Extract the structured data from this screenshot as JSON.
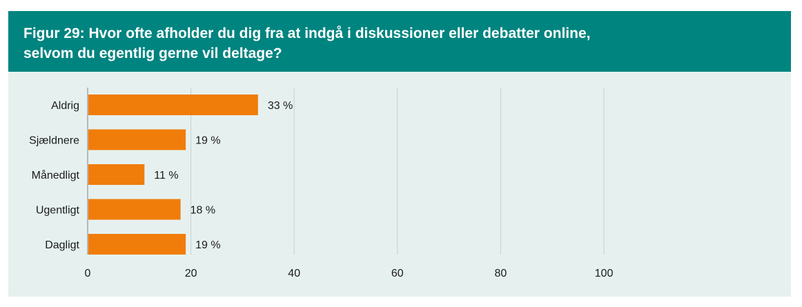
{
  "header": {
    "title_line1": "Figur 29: Hvor ofte afholder du dig fra at indgå i diskussioner eller debatter online,",
    "title_line2": "selvom du egentlig gerne vil deltage?"
  },
  "colors": {
    "header_bg": "#00847f",
    "panel_bg": "#e6f1ef",
    "bar": "#f07d0a",
    "grid": "#c8cfce"
  },
  "chart_data": {
    "type": "bar",
    "orientation": "horizontal",
    "categories": [
      "Aldrig",
      "Sjældnere",
      "Månedligt",
      "Ugentligt",
      "Dagligt"
    ],
    "values": [
      33,
      19,
      11,
      18,
      19
    ],
    "value_labels": [
      "33 %",
      "19 %",
      "11 %",
      "18 %",
      "19 %"
    ],
    "x_ticks": [
      "0",
      "20",
      "40",
      "60",
      "80",
      "100"
    ],
    "xlim": [
      0,
      100
    ],
    "grid": true
  }
}
